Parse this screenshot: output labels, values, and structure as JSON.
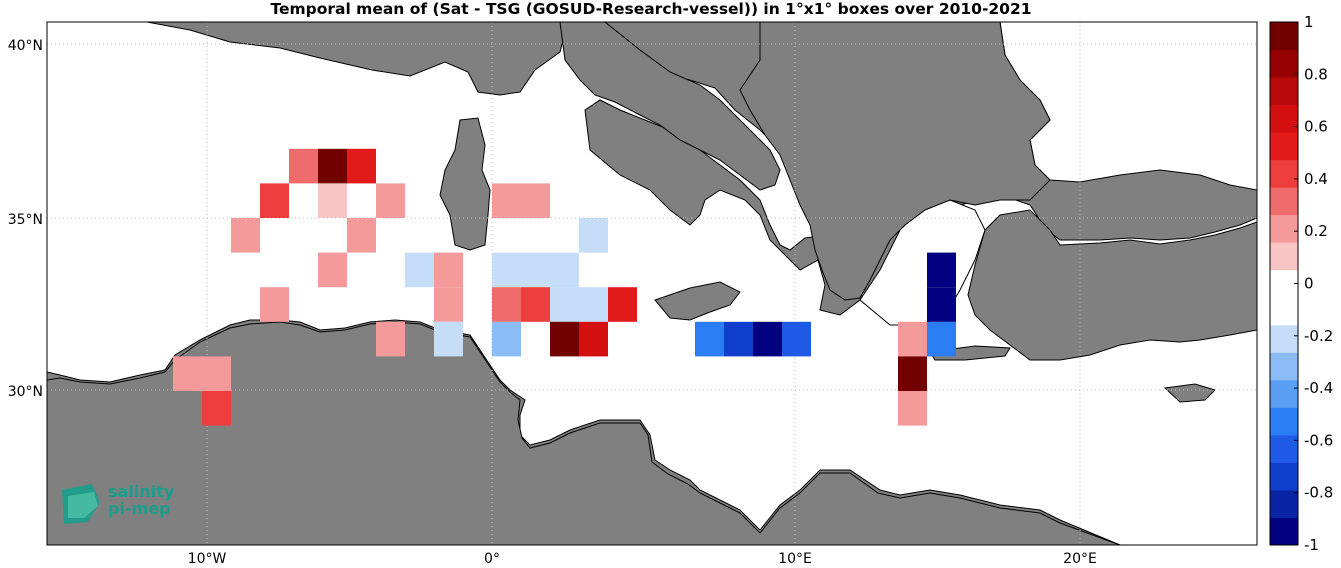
{
  "title": "Temporal mean of (Sat - TSG (GOSUD-Research-vessel)) in 1°x1° boxes over 2010-2021",
  "colors": {
    "land": "#808080",
    "sea": "#ffffff",
    "coast": "#000000",
    "logo": "#1a9e8c"
  },
  "axes": {
    "lat_ticks": [
      {
        "label": "40°N",
        "value": 40
      },
      {
        "label": "35°N",
        "value": 35
      },
      {
        "label": "30°N",
        "value": 30
      }
    ],
    "lon_ticks": [
      {
        "label": "10°W",
        "value": -10
      },
      {
        "label": "0°",
        "value": 0
      },
      {
        "label": "10°E",
        "value": 10
      },
      {
        "label": "20°E",
        "value": 20
      }
    ]
  },
  "colorbar": {
    "min": -1,
    "max": 1,
    "tick_labels": [
      "1",
      "0.8",
      "0.6",
      "0.4",
      "0.2",
      "0",
      "-0.2",
      "-0.4",
      "-0.6",
      "-0.8",
      "-1"
    ],
    "colors": [
      "#000080",
      "#0a24a6",
      "#0f3fcc",
      "#1f5ae6",
      "#2a7df2",
      "#5a9ef5",
      "#8cbcf5",
      "#c6ddf7",
      "#ffffff",
      "#ffffff",
      "#f8c4c4",
      "#f59a9a",
      "#f06c6c",
      "#ed3d3d",
      "#e31a1a",
      "#d40f0f",
      "#b80a0a",
      "#960000",
      "#730000"
    ]
  },
  "logo": {
    "line1": "salinity",
    "line2": "pi-mep"
  },
  "chart_data": {
    "type": "heatmap",
    "title": "Temporal mean of (Sat - TSG (GOSUD-Research-vessel)) in 1°x1° boxes over 2010-2021",
    "value_range": [
      -1,
      1
    ],
    "lat_ticks": [
      40,
      35,
      30
    ],
    "lon_ticks": [
      -10,
      0,
      10,
      20
    ],
    "cells": [
      {
        "lon": -5.5,
        "lat": 36.5,
        "value": 0.95
      },
      {
        "lon": -4.5,
        "lat": 36.5,
        "value": 0.55
      },
      {
        "lon": -6.5,
        "lat": 36.5,
        "value": 0.3
      },
      {
        "lon": -5.5,
        "lat": 35.5,
        "value": 0.15
      },
      {
        "lon": -3.5,
        "lat": 35.5,
        "value": 0.2
      },
      {
        "lon": -7.5,
        "lat": 35.5,
        "value": 0.45
      },
      {
        "lon": 0.5,
        "lat": 35.5,
        "value": 0.25
      },
      {
        "lon": 1.5,
        "lat": 35.5,
        "value": 0.2
      },
      {
        "lon": -8.5,
        "lat": 34.5,
        "value": 0.2
      },
      {
        "lon": -4.5,
        "lat": 34.5,
        "value": 0.2
      },
      {
        "lon": 3.5,
        "lat": 34.5,
        "value": -0.25
      },
      {
        "lon": -5.5,
        "lat": 33.5,
        "value": 0.2
      },
      {
        "lon": -2.5,
        "lat": 33.5,
        "value": -0.2
      },
      {
        "lon": -1.5,
        "lat": 33.5,
        "value": 0.2
      },
      {
        "lon": 0.5,
        "lat": 33.5,
        "value": -0.2
      },
      {
        "lon": 1.5,
        "lat": 33.5,
        "value": -0.2
      },
      {
        "lon": 2.5,
        "lat": 33.5,
        "value": -0.2
      },
      {
        "lon": -7.5,
        "lat": 32.5,
        "value": 0.2
      },
      {
        "lon": -1.5,
        "lat": 32.5,
        "value": 0.25
      },
      {
        "lon": 0.5,
        "lat": 32.5,
        "value": 0.3
      },
      {
        "lon": 1.5,
        "lat": 32.5,
        "value": 0.45
      },
      {
        "lon": 2.5,
        "lat": 32.5,
        "value": -0.2
      },
      {
        "lon": 3.5,
        "lat": 32.5,
        "value": -0.2
      },
      {
        "lon": 4.5,
        "lat": 32.5,
        "value": 0.5
      },
      {
        "lon": -3.5,
        "lat": 31.5,
        "value": 0.25
      },
      {
        "lon": -1.5,
        "lat": 31.5,
        "value": -0.2
      },
      {
        "lon": 0.5,
        "lat": 31.5,
        "value": -0.35
      },
      {
        "lon": 2.5,
        "lat": 31.5,
        "value": 0.9
      },
      {
        "lon": 3.5,
        "lat": 31.5,
        "value": 0.6
      },
      {
        "lon": 7.5,
        "lat": 31.5,
        "value": -0.55
      },
      {
        "lon": 8.5,
        "lat": 31.5,
        "value": -0.75
      },
      {
        "lon": 9.5,
        "lat": 31.5,
        "value": -0.9
      },
      {
        "lon": 10.5,
        "lat": 31.5,
        "value": -0.65
      },
      {
        "lon": 15.5,
        "lat": 31.5,
        "value": -0.55
      },
      {
        "lon": 14.5,
        "lat": 31.5,
        "value": 0.2
      },
      {
        "lon": 15.5,
        "lat": 32.5,
        "value": -0.95
      },
      {
        "lon": 15.5,
        "lat": 33.5,
        "value": -0.95
      },
      {
        "lon": -10.5,
        "lat": 30.5,
        "value": 0.2
      },
      {
        "lon": -9.5,
        "lat": 30.5,
        "value": 0.2
      },
      {
        "lon": 14.5,
        "lat": 30.5,
        "value": 0.9
      },
      {
        "lon": 14.5,
        "lat": 29.5,
        "value": 0.2
      },
      {
        "lon": -9.5,
        "lat": 29.5,
        "value": 0.45
      }
    ]
  }
}
